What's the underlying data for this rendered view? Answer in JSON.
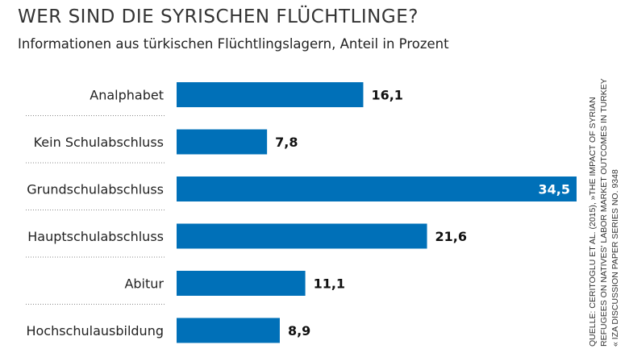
{
  "chart_data": {
    "type": "bar",
    "orientation": "horizontal",
    "title": "WER SIND DIE SYRISCHEN FLÜCHTLINGE?",
    "subtitle": "Informationen aus türkischen Flüchtlingslagern, Anteil in Prozent",
    "categories": [
      "Analphabet",
      "Kein Schulabschluss",
      "Grundschulabschluss",
      "Hauptschulabschluss",
      "Abitur",
      "Hochschulausbildung"
    ],
    "values": [
      16.1,
      7.8,
      34.5,
      21.6,
      11.1,
      8.9
    ],
    "value_labels": [
      "16,1",
      "7,8",
      "34,5",
      "21,6",
      "11,1",
      "8,9"
    ],
    "xlabel": "",
    "ylabel": "",
    "xlim": [
      0,
      34.5
    ],
    "grid": false,
    "bar_color": "#0070b8"
  },
  "source": [
    "QUELLE: CERITOGLU ET AL. (2015), »THE IMPACT OF SYRIAN",
    "REFUGEES ON NATIVES' LABOR MARKET OUTCOMES IN TURKEY",
    "« IZA DISCUSSION PAPER SERIES NO. 9348"
  ]
}
